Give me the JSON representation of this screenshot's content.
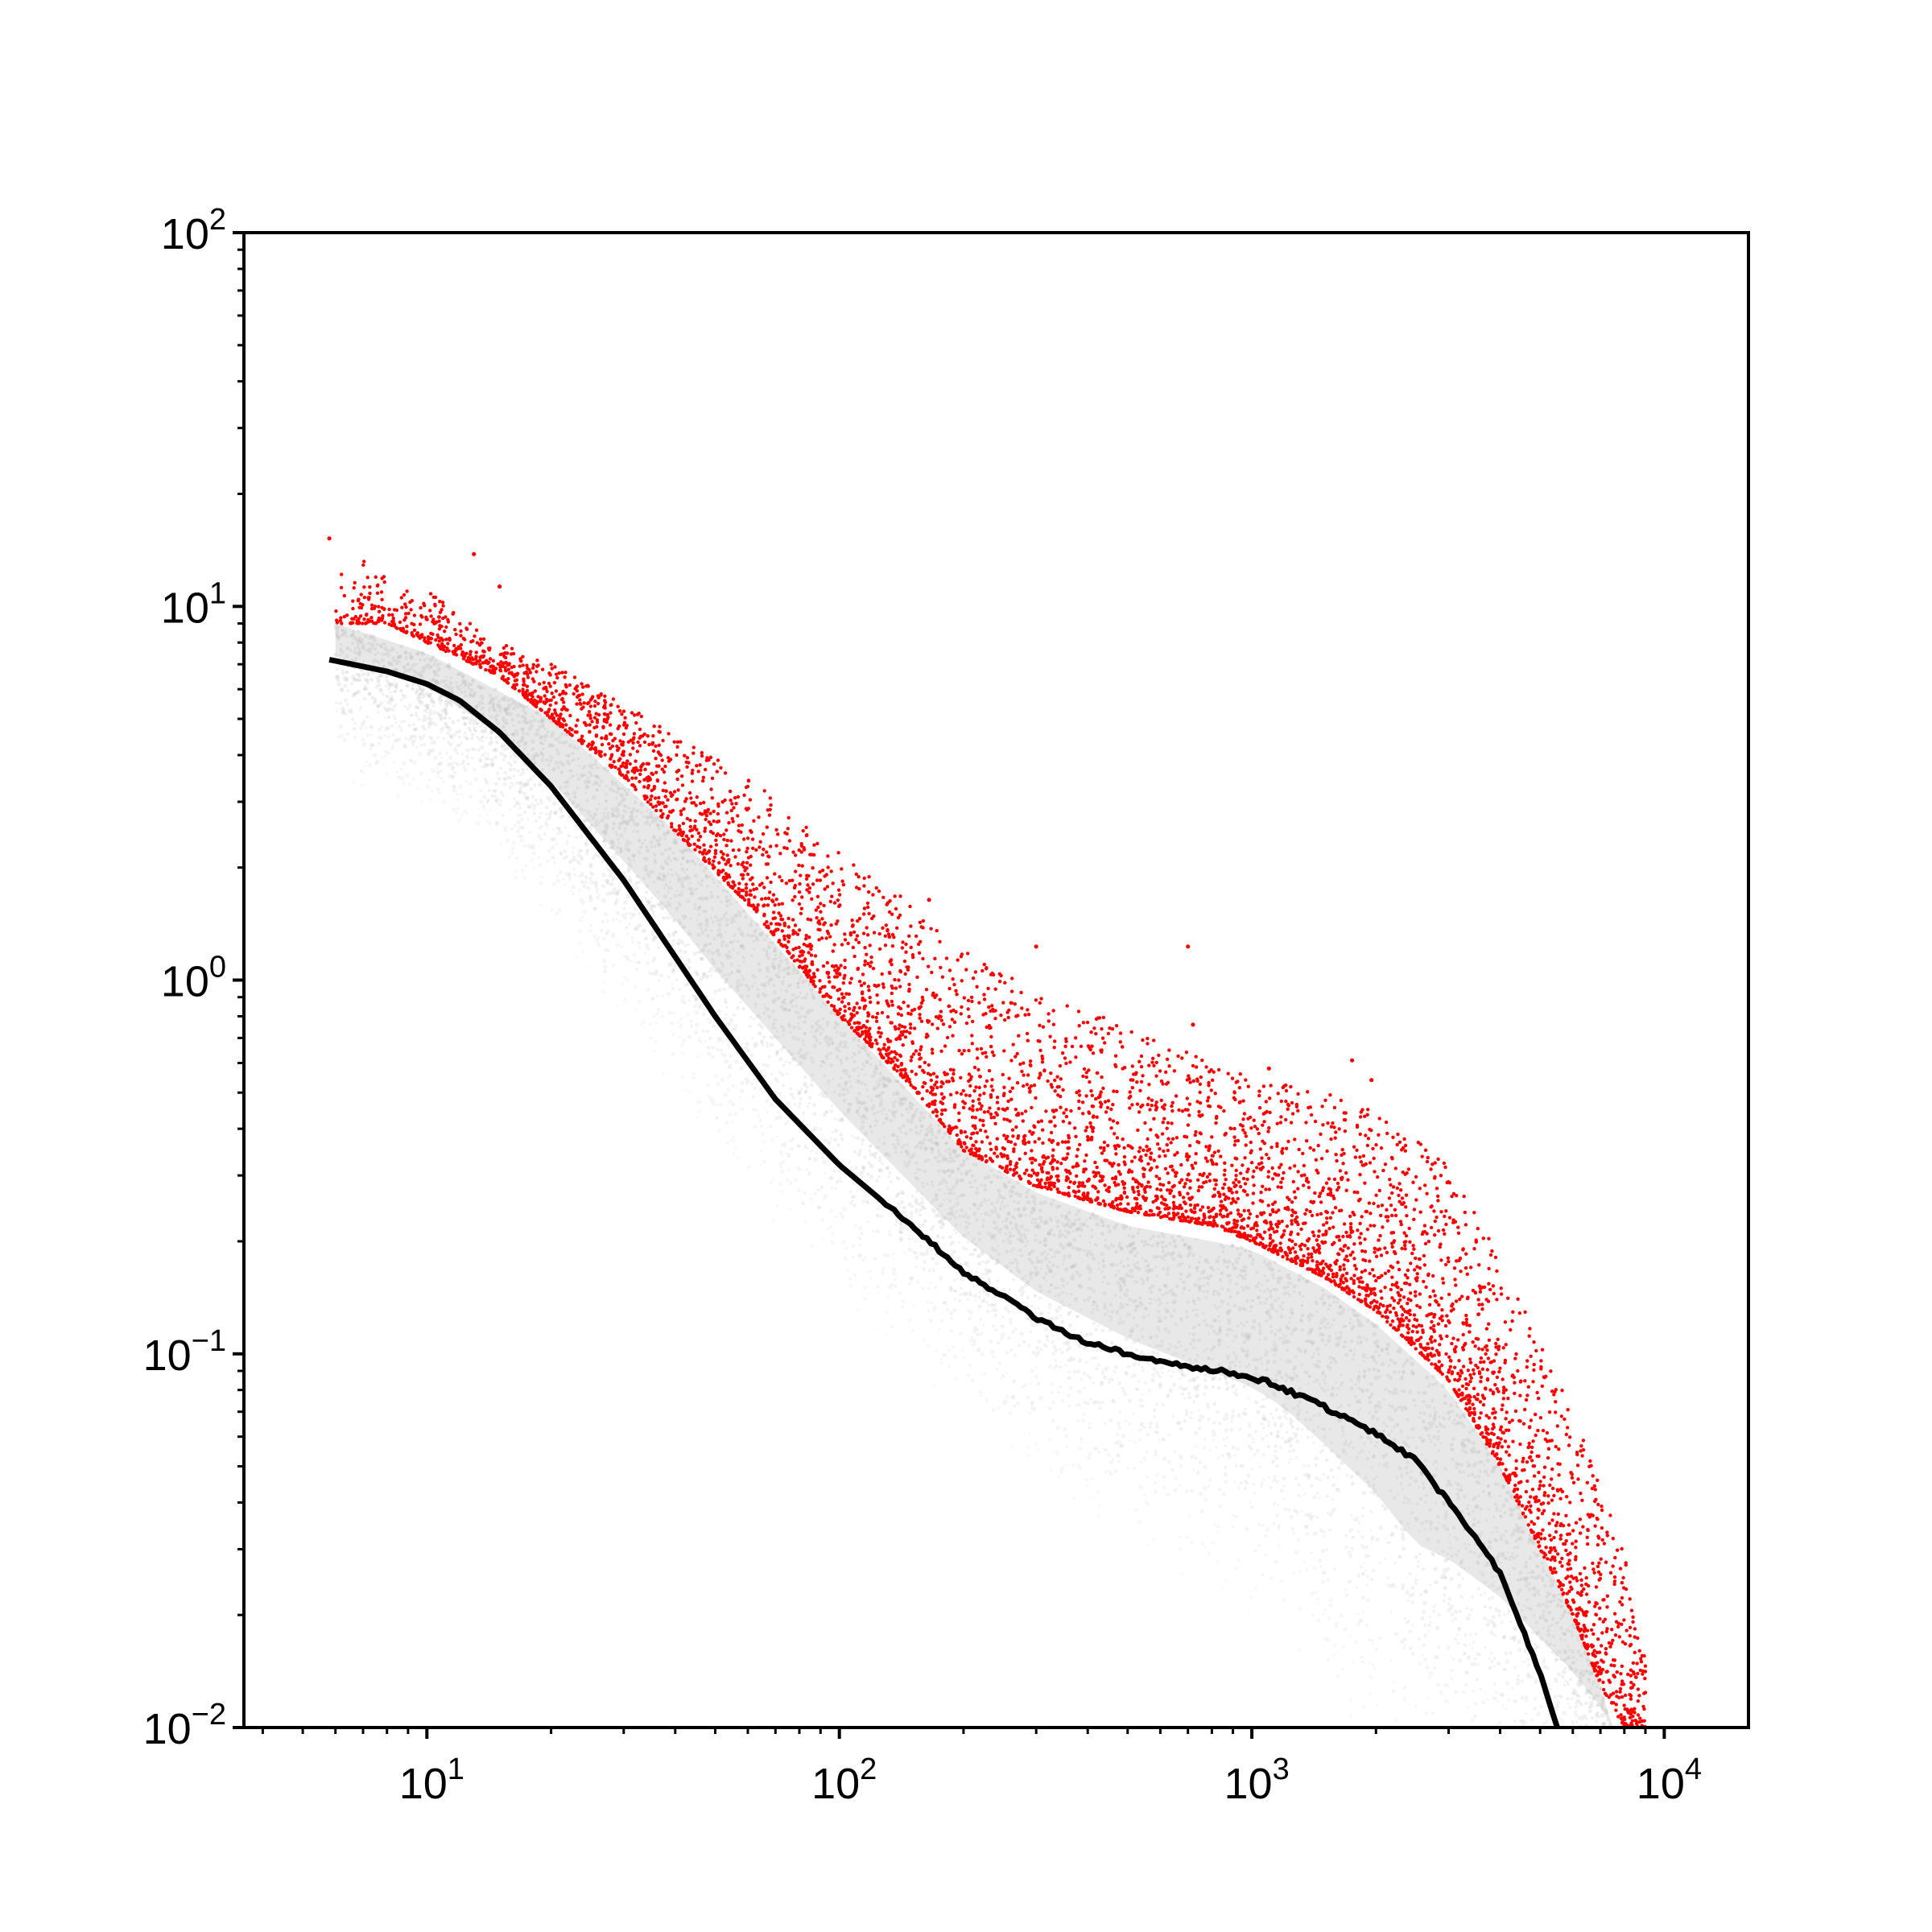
{
  "chart_data": {
    "type": "scatter",
    "title": "",
    "xlabel": "",
    "ylabel": "",
    "x_scale": "log",
    "y_scale": "log",
    "xlim": [
      3.6,
      16000
    ],
    "ylim": [
      0.01,
      100
    ],
    "grid": false,
    "legend": "none",
    "x_ticks": [
      {
        "base": "10",
        "exp": "1",
        "value": 10
      },
      {
        "base": "10",
        "exp": "2",
        "value": 100
      },
      {
        "base": "10",
        "exp": "3",
        "value": 1000
      },
      {
        "base": "10",
        "exp": "4",
        "value": 10000
      }
    ],
    "y_ticks": [
      {
        "base": "10",
        "exp": "−2",
        "value": 0.01
      },
      {
        "base": "10",
        "exp": "−1",
        "value": 0.1
      },
      {
        "base": "10",
        "exp": "0",
        "value": 1
      },
      {
        "base": "10",
        "exp": "1",
        "value": 10
      },
      {
        "base": "10",
        "exp": "2",
        "value": 100
      }
    ],
    "colors": {
      "background_points": "#bdbdbd",
      "highlighted_points": "#ff0000",
      "line": "#000000",
      "axes": "#000000"
    },
    "series": [
      {
        "kind": "line",
        "color": "#000000",
        "points": [
          [
            5.8,
            7.2
          ],
          [
            8,
            6.7
          ],
          [
            10,
            6.2
          ],
          [
            12,
            5.6
          ],
          [
            15,
            4.6
          ],
          [
            20,
            3.3
          ],
          [
            30,
            1.85
          ],
          [
            50,
            0.8
          ],
          [
            70,
            0.48
          ],
          [
            100,
            0.32
          ],
          [
            150,
            0.22
          ],
          [
            200,
            0.165
          ],
          [
            300,
            0.125
          ],
          [
            400,
            0.107
          ],
          [
            500,
            0.1
          ],
          [
            700,
            0.092
          ],
          [
            900,
            0.089
          ],
          [
            1100,
            0.084
          ],
          [
            1500,
            0.072
          ],
          [
            2000,
            0.061
          ],
          [
            2500,
            0.052
          ],
          [
            3000,
            0.04
          ],
          [
            4000,
            0.026
          ],
          [
            5000,
            0.014
          ],
          [
            5500,
            0.01
          ]
        ]
      },
      {
        "kind": "scatter-envelope",
        "color": "#ff0000",
        "upper": [
          [
            6,
            15
          ],
          [
            8,
            12
          ],
          [
            10,
            11
          ],
          [
            15,
            8
          ],
          [
            20,
            7
          ],
          [
            30,
            5.5
          ],
          [
            40,
            4.5
          ],
          [
            60,
            3.5
          ],
          [
            100,
            2.2
          ],
          [
            150,
            1.6
          ],
          [
            200,
            1.2
          ],
          [
            300,
            0.95
          ],
          [
            500,
            0.75
          ],
          [
            800,
            0.6
          ],
          [
            1000,
            0.55
          ],
          [
            1500,
            0.5
          ],
          [
            2000,
            0.45
          ],
          [
            3000,
            0.32
          ],
          [
            4000,
            0.18
          ],
          [
            6000,
            0.07
          ],
          [
            8000,
            0.03
          ],
          [
            9000,
            0.015
          ]
        ],
        "lower": [
          [
            6,
            9
          ],
          [
            8,
            9
          ],
          [
            10,
            8
          ],
          [
            15,
            6.5
          ],
          [
            20,
            5
          ],
          [
            30,
            3.5
          ],
          [
            40,
            2.5
          ],
          [
            60,
            1.6
          ],
          [
            100,
            0.8
          ],
          [
            150,
            0.52
          ],
          [
            200,
            0.35
          ],
          [
            300,
            0.28
          ],
          [
            500,
            0.24
          ],
          [
            800,
            0.22
          ],
          [
            1000,
            0.2
          ],
          [
            1500,
            0.16
          ],
          [
            2000,
            0.13
          ],
          [
            3000,
            0.085
          ],
          [
            4000,
            0.05
          ],
          [
            5000,
            0.03
          ],
          [
            6000,
            0.02
          ],
          [
            7000,
            0.013
          ],
          [
            8000,
            0.01
          ]
        ],
        "outliers": [
          [
            5.8,
            15.2
          ],
          [
            13,
            13.8
          ],
          [
            15,
            11.3
          ],
          [
            165,
            1.64
          ],
          [
            300,
            1.23
          ],
          [
            700,
            1.23
          ],
          [
            720,
            0.76
          ],
          [
            1100,
            0.58
          ],
          [
            1750,
            0.61
          ],
          [
            1950,
            0.54
          ]
        ]
      },
      {
        "kind": "scatter-density",
        "color": "#bdbdbd",
        "upper": [
          [
            6,
            9
          ],
          [
            10,
            7.5
          ],
          [
            20,
            5
          ],
          [
            40,
            2.5
          ],
          [
            100,
            0.8
          ],
          [
            200,
            0.35
          ],
          [
            300,
            0.27
          ],
          [
            500,
            0.22
          ],
          [
            800,
            0.2
          ],
          [
            1000,
            0.19
          ],
          [
            1500,
            0.15
          ],
          [
            2000,
            0.12
          ],
          [
            3000,
            0.08
          ],
          [
            4000,
            0.05
          ],
          [
            5000,
            0.03
          ],
          [
            6000,
            0.02
          ],
          [
            7000,
            0.013
          ],
          [
            7500,
            0.01
          ]
        ],
        "lower": [
          [
            6,
            6
          ],
          [
            10,
            5
          ],
          [
            15,
            3.5
          ],
          [
            30,
            1.3
          ],
          [
            50,
            0.6
          ],
          [
            100,
            0.25
          ],
          [
            200,
            0.12
          ],
          [
            300,
            0.08
          ],
          [
            500,
            0.055
          ],
          [
            800,
            0.04
          ],
          [
            1000,
            0.035
          ],
          [
            1200,
            0.03
          ],
          [
            1600,
            0.02
          ],
          [
            2000,
            0.015
          ],
          [
            2500,
            0.01
          ]
        ]
      }
    ]
  }
}
